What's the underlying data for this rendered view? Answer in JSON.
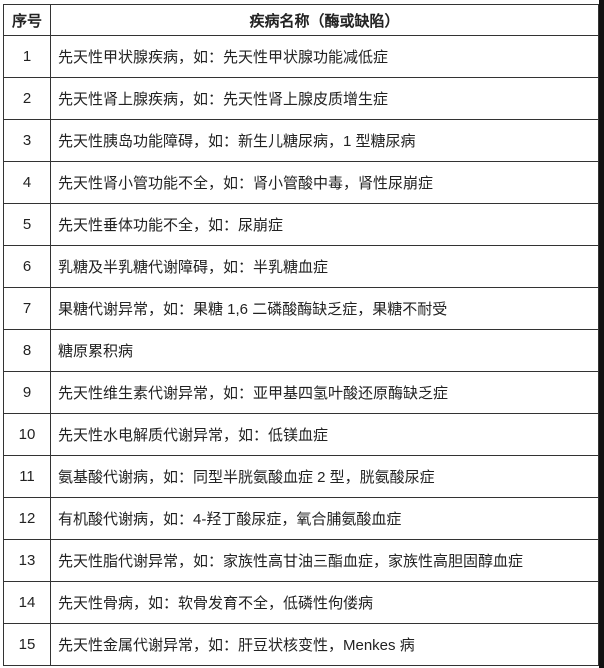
{
  "header": {
    "index": "序号",
    "name": "疾病名称（酶或缺陷）"
  },
  "rows": [
    {
      "index": "1",
      "name": "先天性甲状腺疾病，如：先天性甲状腺功能减低症"
    },
    {
      "index": "2",
      "name": "先天性肾上腺疾病，如：先天性肾上腺皮质增生症"
    },
    {
      "index": "3",
      "name": "先天性胰岛功能障碍，如：新生儿糖尿病，1 型糖尿病"
    },
    {
      "index": "4",
      "name": "先天性肾小管功能不全，如：肾小管酸中毒，肾性尿崩症"
    },
    {
      "index": "5",
      "name": "先天性垂体功能不全，如：尿崩症"
    },
    {
      "index": "6",
      "name": "乳糖及半乳糖代谢障碍，如：半乳糖血症"
    },
    {
      "index": "7",
      "name": "果糖代谢异常，如：果糖 1,6 二磷酸酶缺乏症，果糖不耐受"
    },
    {
      "index": "8",
      "name": "糖原累积病"
    },
    {
      "index": "9",
      "name": "先天性维生素代谢异常，如：亚甲基四氢叶酸还原酶缺乏症"
    },
    {
      "index": "10",
      "name": "先天性水电解质代谢异常，如：低镁血症"
    },
    {
      "index": "11",
      "name": "氨基酸代谢病，如：同型半胱氨酸血症 2 型，胱氨酸尿症"
    },
    {
      "index": "12",
      "name": "有机酸代谢病，如：4-羟丁酸尿症，氧合脯氨酸血症"
    },
    {
      "index": "13",
      "name": "先天性脂代谢异常，如：家族性高甘油三酯血症，家族性高胆固醇血症"
    },
    {
      "index": "14",
      "name": "先天性骨病，如：软骨发育不全，低磷性佝偻病"
    },
    {
      "index": "15",
      "name": "先天性金属代谢异常，如：肝豆状核变性，Menkes 病"
    }
  ]
}
